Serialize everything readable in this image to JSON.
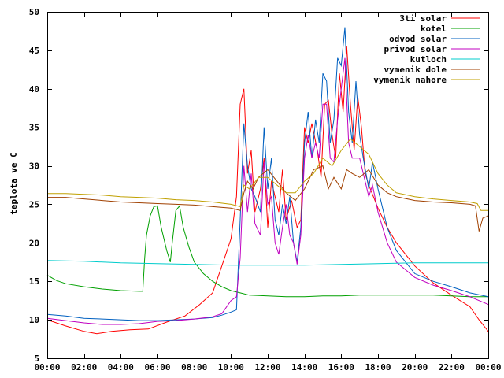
{
  "chart_data": {
    "type": "line",
    "title": "",
    "xlabel": "",
    "ylabel": "teplota ve C",
    "xlim": [
      0,
      24
    ],
    "ylim": [
      5,
      50
    ],
    "grid": false,
    "legend": "top-right",
    "x_ticks": [
      {
        "value": 0,
        "label": "00:00"
      },
      {
        "value": 2,
        "label": "02:00"
      },
      {
        "value": 4,
        "label": "04:00"
      },
      {
        "value": 6,
        "label": "06:00"
      },
      {
        "value": 8,
        "label": "08:00"
      },
      {
        "value": 10,
        "label": "10:00"
      },
      {
        "value": 12,
        "label": "12:00"
      },
      {
        "value": 14,
        "label": "14:00"
      },
      {
        "value": 16,
        "label": "16:00"
      },
      {
        "value": 18,
        "label": "18:00"
      },
      {
        "value": 20,
        "label": "20:00"
      },
      {
        "value": 22,
        "label": "22:00"
      },
      {
        "value": 24,
        "label": "00:00"
      }
    ],
    "y_ticks": [
      {
        "value": 5,
        "label": "5"
      },
      {
        "value": 10,
        "label": "10"
      },
      {
        "value": 15,
        "label": "15"
      },
      {
        "value": 20,
        "label": "20"
      },
      {
        "value": 25,
        "label": "25"
      },
      {
        "value": 30,
        "label": "30"
      },
      {
        "value": 35,
        "label": "35"
      },
      {
        "value": 40,
        "label": "40"
      },
      {
        "value": 45,
        "label": "45"
      },
      {
        "value": 50,
        "label": "50"
      }
    ],
    "series": [
      {
        "name": "3ti solar",
        "color": "#ff0000",
        "points": [
          [
            0,
            10
          ],
          [
            1,
            9.2
          ],
          [
            2,
            8.5
          ],
          [
            2.7,
            8.2
          ],
          [
            3.5,
            8.5
          ],
          [
            4.5,
            8.7
          ],
          [
            5.5,
            8.8
          ],
          [
            6.5,
            9.7
          ],
          [
            7.5,
            10.5
          ],
          [
            8.3,
            12
          ],
          [
            9,
            13.5
          ],
          [
            9.5,
            17
          ],
          [
            10,
            20.5
          ],
          [
            10.3,
            26
          ],
          [
            10.5,
            38
          ],
          [
            10.7,
            40
          ],
          [
            10.9,
            29
          ],
          [
            11.1,
            32
          ],
          [
            11.3,
            24
          ],
          [
            11.6,
            27
          ],
          [
            11.8,
            31
          ],
          [
            12,
            22
          ],
          [
            12.2,
            28
          ],
          [
            12.4,
            26
          ],
          [
            12.6,
            24
          ],
          [
            12.8,
            29.5
          ],
          [
            13,
            23
          ],
          [
            13.3,
            25.5
          ],
          [
            13.6,
            22
          ],
          [
            13.8,
            23
          ],
          [
            14,
            35
          ],
          [
            14.2,
            33
          ],
          [
            14.4,
            35.5
          ],
          [
            14.7,
            32
          ],
          [
            14.9,
            28.5
          ],
          [
            15.1,
            38
          ],
          [
            15.3,
            38.5
          ],
          [
            15.5,
            34
          ],
          [
            15.7,
            31
          ],
          [
            15.9,
            42
          ],
          [
            16.1,
            37
          ],
          [
            16.3,
            45.5
          ],
          [
            16.5,
            38
          ],
          [
            16.7,
            32
          ],
          [
            16.9,
            39
          ],
          [
            17.1,
            35
          ],
          [
            17.3,
            29
          ],
          [
            17.5,
            27.5
          ],
          [
            18,
            24.5
          ],
          [
            18.5,
            22
          ],
          [
            19,
            20
          ],
          [
            20,
            17
          ],
          [
            21,
            14.8
          ],
          [
            22,
            13.2
          ],
          [
            23,
            11.7
          ],
          [
            23.5,
            10
          ],
          [
            24,
            8.5
          ]
        ]
      },
      {
        "name": "kotel",
        "color": "#00a000",
        "points": [
          [
            0,
            15.8
          ],
          [
            0.5,
            15.1
          ],
          [
            1,
            14.7
          ],
          [
            2,
            14.3
          ],
          [
            3,
            14
          ],
          [
            4,
            13.8
          ],
          [
            5,
            13.7
          ],
          [
            5.2,
            13.7
          ],
          [
            5.3,
            18
          ],
          [
            5.4,
            21
          ],
          [
            5.6,
            23.5
          ],
          [
            5.8,
            24.7
          ],
          [
            6,
            24.8
          ],
          [
            6.2,
            22
          ],
          [
            6.5,
            19
          ],
          [
            6.7,
            17.5
          ],
          [
            6.8,
            20
          ],
          [
            7,
            24.2
          ],
          [
            7.2,
            24.8
          ],
          [
            7.4,
            22
          ],
          [
            7.7,
            19.5
          ],
          [
            8,
            17.5
          ],
          [
            8.5,
            16
          ],
          [
            9,
            15
          ],
          [
            9.5,
            14.3
          ],
          [
            10,
            13.8
          ],
          [
            10.5,
            13.5
          ],
          [
            11,
            13.2
          ],
          [
            12,
            13.1
          ],
          [
            13,
            13
          ],
          [
            14,
            13
          ],
          [
            15,
            13.1
          ],
          [
            16,
            13.1
          ],
          [
            17,
            13.2
          ],
          [
            18,
            13.2
          ],
          [
            19,
            13.2
          ],
          [
            20,
            13.2
          ],
          [
            21,
            13.2
          ],
          [
            22,
            13.1
          ],
          [
            23,
            13
          ],
          [
            24,
            13
          ]
        ]
      },
      {
        "name": "odvod solar",
        "color": "#0060c0",
        "points": [
          [
            0,
            10.7
          ],
          [
            1,
            10.5
          ],
          [
            2,
            10.2
          ],
          [
            3,
            10.1
          ],
          [
            4,
            10
          ],
          [
            5,
            9.9
          ],
          [
            6,
            9.9
          ],
          [
            7,
            10
          ],
          [
            8,
            10.1
          ],
          [
            9,
            10.3
          ],
          [
            9.5,
            10.6
          ],
          [
            10,
            11
          ],
          [
            10.3,
            11.3
          ],
          [
            10.5,
            23
          ],
          [
            10.7,
            35.5
          ],
          [
            10.9,
            30
          ],
          [
            11.1,
            27
          ],
          [
            11.3,
            26
          ],
          [
            11.6,
            24
          ],
          [
            11.8,
            35
          ],
          [
            12,
            27
          ],
          [
            12.2,
            31
          ],
          [
            12.4,
            23
          ],
          [
            12.6,
            21
          ],
          [
            12.8,
            25
          ],
          [
            13,
            22.5
          ],
          [
            13.2,
            26
          ],
          [
            13.4,
            20
          ],
          [
            13.6,
            17.5
          ],
          [
            13.8,
            22
          ],
          [
            14,
            33
          ],
          [
            14.2,
            37
          ],
          [
            14.4,
            31
          ],
          [
            14.6,
            36
          ],
          [
            14.8,
            33
          ],
          [
            15,
            42
          ],
          [
            15.2,
            41
          ],
          [
            15.4,
            33
          ],
          [
            15.6,
            36
          ],
          [
            15.8,
            44
          ],
          [
            16,
            43
          ],
          [
            16.2,
            48
          ],
          [
            16.4,
            37
          ],
          [
            16.6,
            33
          ],
          [
            16.8,
            41
          ],
          [
            17,
            34
          ],
          [
            17.2,
            31
          ],
          [
            17.5,
            27
          ],
          [
            17.7,
            30.5
          ],
          [
            18,
            27
          ],
          [
            18.5,
            22
          ],
          [
            19,
            19
          ],
          [
            20,
            16
          ],
          [
            21,
            15
          ],
          [
            22,
            14.3
          ],
          [
            23,
            13.5
          ],
          [
            24,
            13
          ]
        ]
      },
      {
        "name": "privod solar",
        "color": "#c000c0",
        "points": [
          [
            0,
            10.2
          ],
          [
            1,
            9.9
          ],
          [
            2,
            9.6
          ],
          [
            3,
            9.4
          ],
          [
            4,
            9.4
          ],
          [
            5,
            9.5
          ],
          [
            6,
            9.8
          ],
          [
            7,
            9.9
          ],
          [
            8,
            10.1
          ],
          [
            9,
            10.4
          ],
          [
            9.5,
            10.8
          ],
          [
            10,
            12.5
          ],
          [
            10.3,
            13
          ],
          [
            10.5,
            18
          ],
          [
            10.7,
            30
          ],
          [
            10.9,
            24
          ],
          [
            11.1,
            29
          ],
          [
            11.3,
            22.5
          ],
          [
            11.6,
            21
          ],
          [
            11.8,
            30.5
          ],
          [
            12,
            25
          ],
          [
            12.2,
            26
          ],
          [
            12.4,
            20
          ],
          [
            12.6,
            18.5
          ],
          [
            12.8,
            22
          ],
          [
            13,
            25
          ],
          [
            13.2,
            21
          ],
          [
            13.4,
            20
          ],
          [
            13.6,
            17.2
          ],
          [
            13.8,
            21
          ],
          [
            14,
            31
          ],
          [
            14.2,
            34
          ],
          [
            14.4,
            31
          ],
          [
            14.6,
            33
          ],
          [
            14.8,
            31
          ],
          [
            15,
            38
          ],
          [
            15.2,
            38
          ],
          [
            15.4,
            31
          ],
          [
            15.6,
            30.5
          ],
          [
            15.8,
            36
          ],
          [
            16,
            40
          ],
          [
            16.2,
            44
          ],
          [
            16.4,
            33
          ],
          [
            16.6,
            31
          ],
          [
            16.8,
            31
          ],
          [
            17,
            31
          ],
          [
            17.2,
            29
          ],
          [
            17.5,
            26
          ],
          [
            17.7,
            27.5
          ],
          [
            18,
            24
          ],
          [
            18.5,
            20
          ],
          [
            19,
            17.5
          ],
          [
            20,
            15.5
          ],
          [
            21,
            14.5
          ],
          [
            22,
            13.8
          ],
          [
            23,
            13
          ],
          [
            24,
            12
          ]
        ]
      },
      {
        "name": "kutloch",
        "color": "#00cccc",
        "points": [
          [
            0,
            17.7
          ],
          [
            2,
            17.6
          ],
          [
            4,
            17.4
          ],
          [
            6,
            17.3
          ],
          [
            8,
            17.2
          ],
          [
            10,
            17.1
          ],
          [
            12,
            17.1
          ],
          [
            14,
            17.1
          ],
          [
            16,
            17.2
          ],
          [
            18,
            17.3
          ],
          [
            20,
            17.4
          ],
          [
            22,
            17.4
          ],
          [
            24,
            17.4
          ]
        ]
      },
      {
        "name": "vymenik dole",
        "color": "#a04000",
        "points": [
          [
            0,
            25.9
          ],
          [
            1,
            25.9
          ],
          [
            2,
            25.7
          ],
          [
            3,
            25.5
          ],
          [
            4,
            25.3
          ],
          [
            5,
            25.2
          ],
          [
            6,
            25.1
          ],
          [
            7,
            25
          ],
          [
            8,
            24.9
          ],
          [
            9,
            24.7
          ],
          [
            10,
            24.5
          ],
          [
            10.5,
            24.2
          ],
          [
            10.7,
            26.5
          ],
          [
            10.9,
            28
          ],
          [
            11.2,
            27
          ],
          [
            11.5,
            28.5
          ],
          [
            12,
            29.5
          ],
          [
            12.5,
            28
          ],
          [
            13,
            26.5
          ],
          [
            13.5,
            25.5
          ],
          [
            14,
            27
          ],
          [
            14.5,
            29.5
          ],
          [
            15,
            30
          ],
          [
            15.3,
            27
          ],
          [
            15.6,
            28.5
          ],
          [
            16,
            27
          ],
          [
            16.3,
            29.5
          ],
          [
            16.6,
            29
          ],
          [
            17,
            28.5
          ],
          [
            17.5,
            29.5
          ],
          [
            18,
            27.5
          ],
          [
            18.5,
            26.5
          ],
          [
            19,
            26
          ],
          [
            20,
            25.5
          ],
          [
            21,
            25.3
          ],
          [
            22,
            25.2
          ],
          [
            23,
            25
          ],
          [
            23.3,
            24.8
          ],
          [
            23.5,
            21.5
          ],
          [
            23.7,
            23.2
          ],
          [
            24,
            23.5
          ]
        ]
      },
      {
        "name": "vymenik nahore",
        "color": "#c0a000",
        "points": [
          [
            0,
            26.4
          ],
          [
            1,
            26.4
          ],
          [
            2,
            26.3
          ],
          [
            3,
            26.2
          ],
          [
            4,
            26
          ],
          [
            5,
            25.9
          ],
          [
            6,
            25.8
          ],
          [
            7,
            25.6
          ],
          [
            8,
            25.5
          ],
          [
            9,
            25.3
          ],
          [
            10,
            25
          ],
          [
            10.5,
            24.7
          ],
          [
            10.7,
            27.5
          ],
          [
            11,
            27
          ],
          [
            11.5,
            28.5
          ],
          [
            12,
            28.5
          ],
          [
            12.5,
            27.5
          ],
          [
            13,
            26.5
          ],
          [
            13.5,
            26.5
          ],
          [
            14,
            28
          ],
          [
            14.5,
            29
          ],
          [
            15,
            31
          ],
          [
            15.5,
            30
          ],
          [
            16,
            32
          ],
          [
            16.5,
            33.5
          ],
          [
            17,
            32.5
          ],
          [
            17.5,
            31.5
          ],
          [
            18,
            29
          ],
          [
            18.5,
            27.5
          ],
          [
            19,
            26.5
          ],
          [
            20,
            26
          ],
          [
            21,
            25.7
          ],
          [
            22,
            25.5
          ],
          [
            23,
            25.3
          ],
          [
            23.4,
            25.1
          ],
          [
            23.6,
            24.2
          ],
          [
            24,
            24.2
          ]
        ]
      }
    ]
  }
}
